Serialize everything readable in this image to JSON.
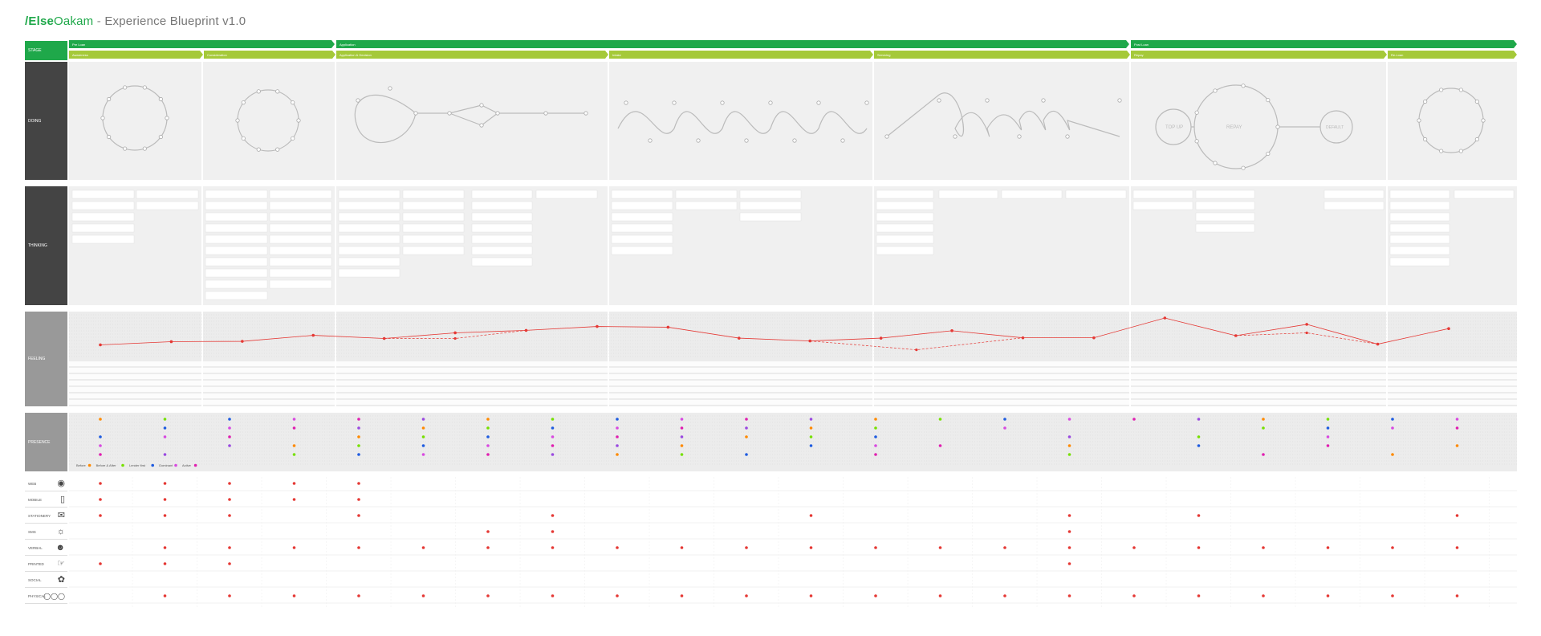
{
  "title": {
    "brand1": "/Else",
    "brand2": "Oakam",
    "sep": " - ",
    "rest": "Experience Blueprint v1.0"
  },
  "colors": {
    "green": "#1fa84a",
    "lime": "#a5c939",
    "dark": "#444444",
    "line": "#e53935"
  },
  "stage_label": "STAGE",
  "phases": [
    {
      "label": "Pre Loan"
    },
    {
      "label": "Application"
    },
    {
      "label": "Post Loan"
    }
  ],
  "substages": [
    {
      "label": "Awareness"
    },
    {
      "label": "Consideration"
    },
    {
      "label": "Application & Decision"
    },
    {
      "label": "Intake"
    },
    {
      "label": "Servicing"
    },
    {
      "label": "Repay"
    },
    {
      "label": "Re-Loan"
    }
  ],
  "row_labels": {
    "doing": "DOING",
    "thinking": "THINKING",
    "feeling": "FEELING",
    "presence": "PRESENCE"
  },
  "ring_labels": {
    "topup": "TOP UP",
    "repay": "REPAY",
    "default": "DEFAULT"
  },
  "presence_legend": [
    "Before",
    "Before & After",
    "Lender first",
    "Dominant",
    "Active"
  ],
  "channels": [
    {
      "label": "WEB"
    },
    {
      "label": "MOBILE"
    },
    {
      "label": "STATIONERY"
    },
    {
      "label": "SMS"
    },
    {
      "label": "VERBAL"
    },
    {
      "label": "PRINTED"
    },
    {
      "label": "SOCIAL"
    },
    {
      "label": "PHYSICAL"
    }
  ],
  "feeling_levels": [
    0.24,
    0.33,
    0.34,
    0.51,
    0.42,
    0.58,
    0.65,
    0.76,
    0.74,
    0.43,
    0.35,
    0.43,
    0.64,
    0.44,
    0.44,
    1.0,
    0.5,
    0.82,
    0.26,
    0.7
  ],
  "feeling_dashed": [
    0.42,
    0.1,
    0.58
  ],
  "channel_dots": {
    "WEB": [
      0,
      1,
      2,
      3,
      4
    ],
    "MOBILE": [
      0,
      1,
      2,
      3,
      4
    ],
    "STATIONERY": [
      0,
      1,
      2,
      4,
      7,
      11,
      15,
      17,
      21
    ],
    "SMS": [
      6,
      7,
      15
    ],
    "VERBAL": [
      1,
      2,
      3,
      4,
      5,
      6,
      7,
      8,
      9,
      10,
      11,
      12,
      13,
      14,
      15,
      16,
      17,
      18,
      19,
      20,
      21
    ],
    "PRINTED": [
      0,
      1,
      2,
      15
    ],
    "SOCIAL": [],
    "PHYSICAL": [
      1,
      2,
      3,
      4,
      5,
      6,
      7,
      8,
      9,
      10,
      11,
      12,
      13,
      14,
      15,
      16,
      17,
      18,
      19,
      20,
      21
    ]
  }
}
